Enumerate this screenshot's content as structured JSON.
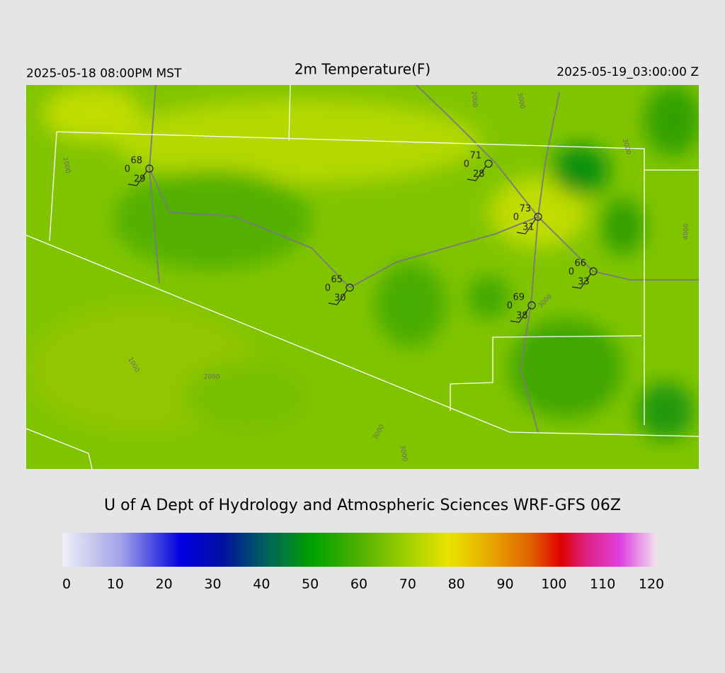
{
  "header": {
    "local_time": "2025-05-18 08:00PM MST",
    "title": "2m Temperature(F)",
    "utc_time": "2025-05-19_03:00:00 Z"
  },
  "stations": [
    {
      "temperature": 68,
      "wind": 0,
      "dewpoint": 29
    },
    {
      "temperature": 71,
      "wind": 0,
      "dewpoint": 28
    },
    {
      "temperature": 73,
      "wind": 0,
      "dewpoint": 31
    },
    {
      "temperature": 66,
      "wind": 0,
      "dewpoint": 33
    },
    {
      "temperature": 65,
      "wind": 0,
      "dewpoint": 30
    },
    {
      "temperature": 69,
      "wind": 0,
      "dewpoint": 38
    }
  ],
  "contour_labels": [
    "1000",
    "1000",
    "2000",
    "3000",
    "3000",
    "2000",
    "3000",
    "3000",
    "3000",
    "4000"
  ],
  "footer": "U of A Dept of Hydrology and Atmospheric Sciences WRF-GFS 06Z",
  "colorbar": {
    "lim": [
      0,
      120
    ],
    "ticks": [
      0,
      10,
      20,
      30,
      40,
      50,
      60,
      70,
      80,
      90,
      100,
      110,
      120
    ]
  }
}
